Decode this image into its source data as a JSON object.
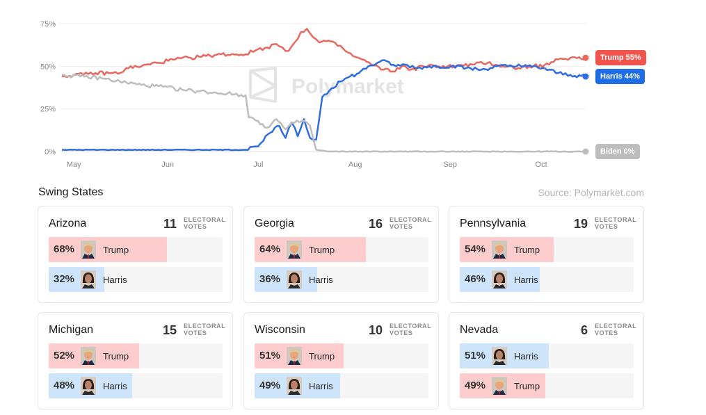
{
  "chart_data": {
    "type": "line",
    "title": "",
    "xlabel": "",
    "ylabel": "",
    "ylim": [
      0,
      75
    ],
    "y_ticks": [
      "0%",
      "25%",
      "50%",
      "75%"
    ],
    "x_ticks": [
      {
        "label": "May",
        "date": "2024-05-01"
      },
      {
        "label": "Jun",
        "date": "2024-06-01"
      },
      {
        "label": "Jul",
        "date": "2024-07-01"
      },
      {
        "label": "Aug",
        "date": "2024-08-01"
      },
      {
        "label": "Sep",
        "date": "2024-09-01"
      },
      {
        "label": "Oct",
        "date": "2024-10-01"
      }
    ],
    "grid": true,
    "watermark": "Polymarket",
    "series": [
      {
        "name": "Trump",
        "end_label": "Trump 55%",
        "color": "#e8675f",
        "label_color": "#f0544d",
        "points": [
          [
            "2024-04-29",
            44
          ],
          [
            "2024-05-03",
            45
          ],
          [
            "2024-05-06",
            45
          ],
          [
            "2024-05-10",
            46
          ],
          [
            "2024-05-15",
            46
          ],
          [
            "2024-05-18",
            46
          ],
          [
            "2024-05-20",
            49
          ],
          [
            "2024-05-25",
            50
          ],
          [
            "2024-05-30",
            52
          ],
          [
            "2024-06-05",
            54
          ],
          [
            "2024-06-10",
            55
          ],
          [
            "2024-06-15",
            56
          ],
          [
            "2024-06-20",
            57
          ],
          [
            "2024-06-25",
            57
          ],
          [
            "2024-06-28",
            57
          ],
          [
            "2024-07-02",
            60
          ],
          [
            "2024-07-05",
            61
          ],
          [
            "2024-07-08",
            63
          ],
          [
            "2024-07-10",
            61
          ],
          [
            "2024-07-12",
            59
          ],
          [
            "2024-07-14",
            64
          ],
          [
            "2024-07-16",
            70
          ],
          [
            "2024-07-18",
            72
          ],
          [
            "2024-07-20",
            67
          ],
          [
            "2024-07-22",
            64
          ],
          [
            "2024-07-25",
            65
          ],
          [
            "2024-07-28",
            62
          ],
          [
            "2024-07-30",
            60
          ],
          [
            "2024-08-02",
            56
          ],
          [
            "2024-08-05",
            54
          ],
          [
            "2024-08-08",
            51
          ],
          [
            "2024-08-12",
            48
          ],
          [
            "2024-08-15",
            47
          ],
          [
            "2024-08-18",
            50
          ],
          [
            "2024-08-21",
            48
          ],
          [
            "2024-08-25",
            50
          ],
          [
            "2024-08-30",
            50
          ],
          [
            "2024-09-05",
            50
          ],
          [
            "2024-09-10",
            51
          ],
          [
            "2024-09-15",
            52
          ],
          [
            "2024-09-20",
            50
          ],
          [
            "2024-09-25",
            49
          ],
          [
            "2024-09-30",
            50
          ],
          [
            "2024-10-05",
            51
          ],
          [
            "2024-10-08",
            54
          ],
          [
            "2024-10-12",
            55
          ],
          [
            "2024-10-17",
            55
          ]
        ]
      },
      {
        "name": "Harris",
        "end_label": "Harris 44%",
        "color": "#2e6cdf",
        "label_color": "#1f6ee6",
        "points": [
          [
            "2024-04-29",
            1
          ],
          [
            "2024-05-15",
            1
          ],
          [
            "2024-06-01",
            1
          ],
          [
            "2024-06-15",
            1
          ],
          [
            "2024-06-28",
            1
          ],
          [
            "2024-07-01",
            3
          ],
          [
            "2024-07-03",
            5
          ],
          [
            "2024-07-06",
            11
          ],
          [
            "2024-07-09",
            15
          ],
          [
            "2024-07-11",
            8
          ],
          [
            "2024-07-13",
            17
          ],
          [
            "2024-07-15",
            9
          ],
          [
            "2024-07-17",
            19
          ],
          [
            "2024-07-19",
            8
          ],
          [
            "2024-07-21",
            7
          ],
          [
            "2024-07-23",
            32
          ],
          [
            "2024-07-26",
            37
          ],
          [
            "2024-07-29",
            41
          ],
          [
            "2024-08-01",
            44
          ],
          [
            "2024-08-04",
            46
          ],
          [
            "2024-08-07",
            50
          ],
          [
            "2024-08-10",
            52
          ],
          [
            "2024-08-13",
            53
          ],
          [
            "2024-08-16",
            50
          ],
          [
            "2024-08-19",
            51
          ],
          [
            "2024-08-23",
            49
          ],
          [
            "2024-08-27",
            50
          ],
          [
            "2024-09-03",
            50
          ],
          [
            "2024-09-08",
            49
          ],
          [
            "2024-09-13",
            48
          ],
          [
            "2024-09-18",
            50
          ],
          [
            "2024-09-23",
            50
          ],
          [
            "2024-09-28",
            50
          ],
          [
            "2024-10-03",
            49
          ],
          [
            "2024-10-08",
            46
          ],
          [
            "2024-10-12",
            45
          ],
          [
            "2024-10-17",
            44
          ]
        ]
      },
      {
        "name": "Biden",
        "end_label": "Biden 0%",
        "color": "#bdbdbd",
        "label_color": "#bdbdbd",
        "points": [
          [
            "2024-04-29",
            45
          ],
          [
            "2024-05-05",
            44
          ],
          [
            "2024-05-12",
            43
          ],
          [
            "2024-05-18",
            41
          ],
          [
            "2024-05-25",
            39
          ],
          [
            "2024-06-01",
            38
          ],
          [
            "2024-06-08",
            36
          ],
          [
            "2024-06-15",
            35
          ],
          [
            "2024-06-22",
            34
          ],
          [
            "2024-06-28",
            33
          ],
          [
            "2024-06-29",
            20
          ],
          [
            "2024-07-02",
            18
          ],
          [
            "2024-07-05",
            14
          ],
          [
            "2024-07-08",
            19
          ],
          [
            "2024-07-11",
            13
          ],
          [
            "2024-07-14",
            17
          ],
          [
            "2024-07-17",
            18
          ],
          [
            "2024-07-19",
            15
          ],
          [
            "2024-07-21",
            1
          ],
          [
            "2024-07-25",
            0
          ],
          [
            "2024-08-15",
            0
          ],
          [
            "2024-09-15",
            0
          ],
          [
            "2024-10-17",
            0
          ]
        ]
      }
    ]
  },
  "page": {
    "section_title": "Swing States",
    "source": "Source: Polymarket.com",
    "ev_label_line1": "ELECTORAL",
    "ev_label_line2": "VOTES"
  },
  "states": [
    {
      "name": "Arizona",
      "votes": "11",
      "rows": [
        {
          "candidate": "Trump",
          "pct": "68%",
          "value": 68
        },
        {
          "candidate": "Harris",
          "pct": "32%",
          "value": 32
        }
      ]
    },
    {
      "name": "Georgia",
      "votes": "16",
      "rows": [
        {
          "candidate": "Trump",
          "pct": "64%",
          "value": 64
        },
        {
          "candidate": "Harris",
          "pct": "36%",
          "value": 36
        }
      ]
    },
    {
      "name": "Pennsylvania",
      "votes": "19",
      "rows": [
        {
          "candidate": "Trump",
          "pct": "54%",
          "value": 54
        },
        {
          "candidate": "Harris",
          "pct": "46%",
          "value": 46
        }
      ]
    },
    {
      "name": "Michigan",
      "votes": "15",
      "rows": [
        {
          "candidate": "Trump",
          "pct": "52%",
          "value": 52
        },
        {
          "candidate": "Harris",
          "pct": "48%",
          "value": 48
        }
      ]
    },
    {
      "name": "Wisconsin",
      "votes": "10",
      "rows": [
        {
          "candidate": "Trump",
          "pct": "51%",
          "value": 51
        },
        {
          "candidate": "Harris",
          "pct": "49%",
          "value": 49
        }
      ]
    },
    {
      "name": "Nevada",
      "votes": "6",
      "rows": [
        {
          "candidate": "Harris",
          "pct": "51%",
          "value": 51
        },
        {
          "candidate": "Trump",
          "pct": "49%",
          "value": 49
        }
      ]
    }
  ],
  "colors": {
    "trump_fill": "#fdcdcd",
    "harris_fill": "#cde4fb",
    "trump_face": "trump-portrait-icon",
    "harris_face": "harris-portrait-icon"
  }
}
